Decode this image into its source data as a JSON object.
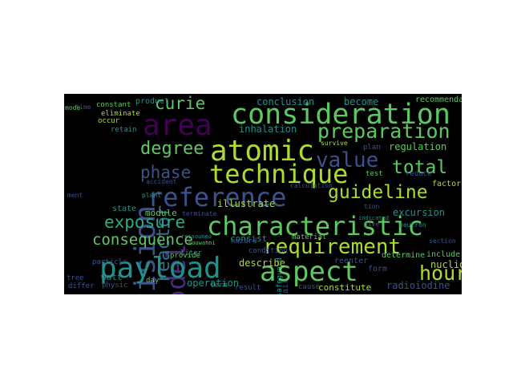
{
  "wordcloud": {
    "background": "#000000",
    "colormap": "viridis",
    "words": [
      {
        "text": "consideration",
        "color": "#5ec962"
      },
      {
        "text": "characteristic",
        "color": "#5ec962"
      },
      {
        "text": "technique",
        "color": "#addc30"
      },
      {
        "text": "reference",
        "color": "#3b528b"
      },
      {
        "text": "atomic",
        "color": "#addc30"
      },
      {
        "text": "area",
        "color": "#440154"
      },
      {
        "text": "payload",
        "color": "#21918c"
      },
      {
        "text": "aspect",
        "color": "#5ec962"
      },
      {
        "text": "requirement",
        "color": "#addc30"
      },
      {
        "text": "provision",
        "color": "#3b528b"
      },
      {
        "text": "model",
        "color": "#472d7b"
      },
      {
        "text": "reactor",
        "color": "#2c728e"
      },
      {
        "text": "preparation",
        "color": "#5ec962"
      },
      {
        "text": "guideline",
        "color": "#addc30"
      },
      {
        "text": "consequence",
        "color": "#5ec962"
      },
      {
        "text": "exposure",
        "color": "#28ae80"
      },
      {
        "text": "value",
        "color": "#3b528b"
      },
      {
        "text": "total",
        "color": "#5ec962"
      },
      {
        "text": "degree",
        "color": "#5ec962"
      },
      {
        "text": "curie",
        "color": "#5ec962"
      },
      {
        "text": "phase",
        "color": "#3b528b"
      },
      {
        "text": "hour",
        "color": "#addc30"
      },
      {
        "text": "conclusion",
        "color": "#21918c"
      },
      {
        "text": "inhalation",
        "color": "#21918c"
      },
      {
        "text": "become",
        "color": "#21918c"
      },
      {
        "text": "regulation",
        "color": "#5ec962"
      },
      {
        "text": "illustrate",
        "color": "#addc30"
      },
      {
        "text": "excursion",
        "color": "#21918c"
      },
      {
        "text": "nuclide",
        "color": "#addc30"
      },
      {
        "text": "radioiodine",
        "color": "#3b528b"
      },
      {
        "text": "constitute",
        "color": "#addc30"
      },
      {
        "text": "describe",
        "color": "#addc30"
      },
      {
        "text": "element",
        "color": "#5ec962"
      },
      {
        "text": "module",
        "color": "#5ec962"
      },
      {
        "text": "figure",
        "color": "#5ec962"
      },
      {
        "text": "consist",
        "color": "#21918c"
      },
      {
        "text": "watt",
        "color": "#21918c"
      },
      {
        "text": "safeguard",
        "color": "#21918c"
      },
      {
        "text": "operation",
        "color": "#21918c"
      },
      {
        "text": "accident",
        "color": "#3b528b"
      },
      {
        "text": "terminate",
        "color": "#3b528b"
      },
      {
        "text": "plant",
        "color": "#21918c"
      },
      {
        "text": "state",
        "color": "#21918c"
      },
      {
        "text": "factor",
        "color": "#addc30"
      },
      {
        "text": "test",
        "color": "#5ec962"
      },
      {
        "text": "reduce",
        "color": "#3b528b"
      },
      {
        "text": "plan",
        "color": "#3b528b"
      },
      {
        "text": "survive",
        "color": "#addc30"
      },
      {
        "text": "constant",
        "color": "#5ec962"
      },
      {
        "text": "eliminate",
        "color": "#addc30"
      },
      {
        "text": "occur",
        "color": "#addc30"
      },
      {
        "text": "mode",
        "color": "#5ec962"
      },
      {
        "text": "retain",
        "color": "#21918c"
      },
      {
        "text": "product",
        "color": "#21918c"
      },
      {
        "text": "recommendation",
        "color": "#5ec962"
      },
      {
        "text": "particle",
        "color": "#3b528b"
      },
      {
        "text": "provide",
        "color": "#5ec962"
      },
      {
        "text": "hazard",
        "color": "#3b528b"
      },
      {
        "text": "condition",
        "color": "#3b528b"
      },
      {
        "text": "reenter",
        "color": "#3b528b"
      },
      {
        "text": "determine",
        "color": "#5ec962"
      },
      {
        "text": "form",
        "color": "#3b528b"
      },
      {
        "text": "cause",
        "color": "#3b528b"
      },
      {
        "text": "result",
        "color": "#3b528b"
      },
      {
        "text": "tree",
        "color": "#3b528b"
      },
      {
        "text": "differ",
        "color": "#3b528b"
      },
      {
        "text": "physic",
        "color": "#3b528b"
      },
      {
        "text": "day",
        "color": "#5ec962"
      },
      {
        "text": "liter",
        "color": "#21918c"
      },
      {
        "text": "include",
        "color": "#5ec962"
      },
      {
        "text": "effect",
        "color": "#3b528b"
      },
      {
        "text": "follow",
        "color": "#3b528b"
      },
      {
        "text": "fail",
        "color": "#3b528b"
      },
      {
        "text": "material",
        "color": "#5ec962"
      },
      {
        "text": "neutron",
        "color": "#21918c"
      },
      {
        "text": "term",
        "color": "#21918c"
      },
      {
        "text": "time",
        "color": "#3b528b"
      },
      {
        "text": "ment",
        "color": "#3b528b"
      },
      {
        "text": "give",
        "color": "#3b528b"
      },
      {
        "text": "tion",
        "color": "#3b528b"
      },
      {
        "text": "calculation",
        "color": "#3b528b"
      },
      {
        "text": "indicated",
        "color": "#21918c"
      },
      {
        "text": "site",
        "color": "#3b528b"
      },
      {
        "text": "section",
        "color": "#3b528b"
      },
      {
        "text": "individual",
        "color": "#3b528b"
      },
      {
        "text": "nouwahni",
        "color": "#5ec962"
      },
      {
        "text": "reisouneo",
        "color": "#21918c"
      }
    ]
  }
}
